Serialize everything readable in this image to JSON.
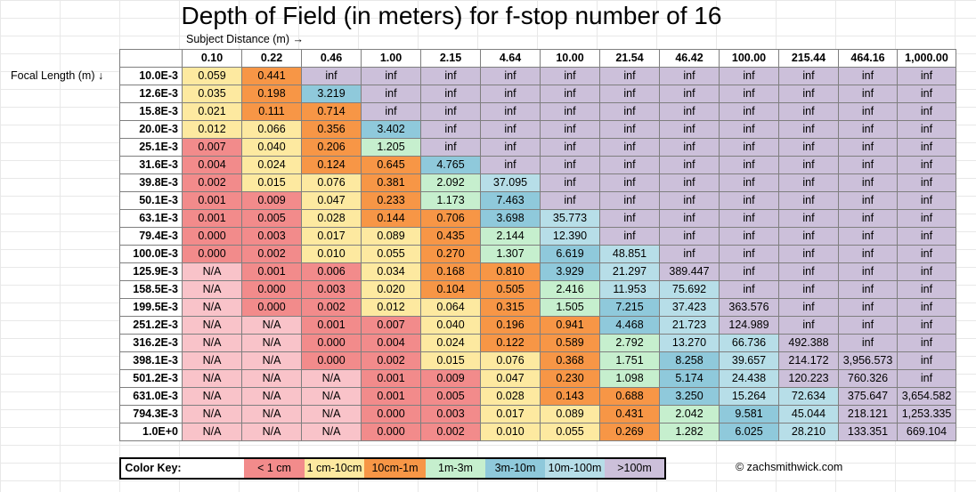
{
  "title": "Depth of Field (in meters) for f-stop number of 16",
  "subject_axis_label": "Subject Distance (m) →",
  "focal_axis_label": "Focal Length (m) ↓",
  "copyright": "© zachsmithwick.com",
  "color_key": {
    "label": "Color Key:",
    "items": [
      {
        "label": "< 1 cm",
        "color": "#f28b8b"
      },
      {
        "label": "1 cm-10cm",
        "color": "#fde9a0"
      },
      {
        "label": "10cm-1m",
        "color": "#f79646"
      },
      {
        "label": "1m-3m",
        "color": "#c6efce"
      },
      {
        "label": "3m-10m",
        "color": "#8fc9db"
      },
      {
        "label": "10m-100m",
        "color": "#b7dee8"
      },
      {
        "label": ">100m",
        "color": "#ccc0da"
      }
    ]
  },
  "cell_colors": {
    "na": "#f9c3c9",
    "lt1cm": "#f28b8b",
    "cm1_10": "#fde9a0",
    "cm10_1m": "#f79646",
    "m1_3": "#c6efce",
    "m3_10": "#8fc9db",
    "m10_100": "#b7dee8",
    "gt100": "#ccc0da",
    "inf": "#ccc0da"
  },
  "chart_data": {
    "type": "table",
    "title": "Depth of Field (in meters) for f-stop number of 16",
    "xlabel": "Subject Distance (m)",
    "ylabel": "Focal Length (m)",
    "columns": [
      "0.10",
      "0.22",
      "0.46",
      "1.00",
      "2.15",
      "4.64",
      "10.00",
      "21.54",
      "46.42",
      "100.00",
      "215.44",
      "464.16",
      "1,000.00"
    ],
    "rows": [
      {
        "label": "10.0E-3",
        "values": [
          "0.059",
          "0.441",
          "inf",
          "inf",
          "inf",
          "inf",
          "inf",
          "inf",
          "inf",
          "inf",
          "inf",
          "inf",
          "inf"
        ]
      },
      {
        "label": "12.6E-3",
        "values": [
          "0.035",
          "0.198",
          "3.219",
          "inf",
          "inf",
          "inf",
          "inf",
          "inf",
          "inf",
          "inf",
          "inf",
          "inf",
          "inf"
        ]
      },
      {
        "label": "15.8E-3",
        "values": [
          "0.021",
          "0.111",
          "0.714",
          "inf",
          "inf",
          "inf",
          "inf",
          "inf",
          "inf",
          "inf",
          "inf",
          "inf",
          "inf"
        ]
      },
      {
        "label": "20.0E-3",
        "values": [
          "0.012",
          "0.066",
          "0.356",
          "3.402",
          "inf",
          "inf",
          "inf",
          "inf",
          "inf",
          "inf",
          "inf",
          "inf",
          "inf"
        ]
      },
      {
        "label": "25.1E-3",
        "values": [
          "0.007",
          "0.040",
          "0.206",
          "1.205",
          "inf",
          "inf",
          "inf",
          "inf",
          "inf",
          "inf",
          "inf",
          "inf",
          "inf"
        ]
      },
      {
        "label": "31.6E-3",
        "values": [
          "0.004",
          "0.024",
          "0.124",
          "0.645",
          "4.765",
          "inf",
          "inf",
          "inf",
          "inf",
          "inf",
          "inf",
          "inf",
          "inf"
        ]
      },
      {
        "label": "39.8E-3",
        "values": [
          "0.002",
          "0.015",
          "0.076",
          "0.381",
          "2.092",
          "37.095",
          "inf",
          "inf",
          "inf",
          "inf",
          "inf",
          "inf",
          "inf"
        ]
      },
      {
        "label": "50.1E-3",
        "values": [
          "0.001",
          "0.009",
          "0.047",
          "0.233",
          "1.173",
          "7.463",
          "inf",
          "inf",
          "inf",
          "inf",
          "inf",
          "inf",
          "inf"
        ]
      },
      {
        "label": "63.1E-3",
        "values": [
          "0.001",
          "0.005",
          "0.028",
          "0.144",
          "0.706",
          "3.698",
          "35.773",
          "inf",
          "inf",
          "inf",
          "inf",
          "inf",
          "inf"
        ]
      },
      {
        "label": "79.4E-3",
        "values": [
          "0.000",
          "0.003",
          "0.017",
          "0.089",
          "0.435",
          "2.144",
          "12.390",
          "inf",
          "inf",
          "inf",
          "inf",
          "inf",
          "inf"
        ]
      },
      {
        "label": "100.0E-3",
        "values": [
          "0.000",
          "0.002",
          "0.010",
          "0.055",
          "0.270",
          "1.307",
          "6.619",
          "48.851",
          "inf",
          "inf",
          "inf",
          "inf",
          "inf"
        ]
      },
      {
        "label": "125.9E-3",
        "values": [
          "N/A",
          "0.001",
          "0.006",
          "0.034",
          "0.168",
          "0.810",
          "3.929",
          "21.297",
          "389.447",
          "inf",
          "inf",
          "inf",
          "inf"
        ]
      },
      {
        "label": "158.5E-3",
        "values": [
          "N/A",
          "0.000",
          "0.003",
          "0.020",
          "0.104",
          "0.505",
          "2.416",
          "11.953",
          "75.692",
          "inf",
          "inf",
          "inf",
          "inf"
        ]
      },
      {
        "label": "199.5E-3",
        "values": [
          "N/A",
          "0.000",
          "0.002",
          "0.012",
          "0.064",
          "0.315",
          "1.505",
          "7.215",
          "37.423",
          "363.576",
          "inf",
          "inf",
          "inf"
        ]
      },
      {
        "label": "251.2E-3",
        "values": [
          "N/A",
          "N/A",
          "0.001",
          "0.007",
          "0.040",
          "0.196",
          "0.941",
          "4.468",
          "21.723",
          "124.989",
          "inf",
          "inf",
          "inf"
        ]
      },
      {
        "label": "316.2E-3",
        "values": [
          "N/A",
          "N/A",
          "0.000",
          "0.004",
          "0.024",
          "0.122",
          "0.589",
          "2.792",
          "13.270",
          "66.736",
          "492.388",
          "inf",
          "inf"
        ]
      },
      {
        "label": "398.1E-3",
        "values": [
          "N/A",
          "N/A",
          "0.000",
          "0.002",
          "0.015",
          "0.076",
          "0.368",
          "1.751",
          "8.258",
          "39.657",
          "214.172",
          "3,956.573",
          "inf"
        ]
      },
      {
        "label": "501.2E-3",
        "values": [
          "N/A",
          "N/A",
          "N/A",
          "0.001",
          "0.009",
          "0.047",
          "0.230",
          "1.098",
          "5.174",
          "24.438",
          "120.223",
          "760.326",
          "inf"
        ]
      },
      {
        "label": "631.0E-3",
        "values": [
          "N/A",
          "N/A",
          "N/A",
          "0.001",
          "0.005",
          "0.028",
          "0.143",
          "0.688",
          "3.250",
          "15.264",
          "72.634",
          "375.647",
          "3,654.582"
        ]
      },
      {
        "label": "794.3E-3",
        "values": [
          "N/A",
          "N/A",
          "N/A",
          "0.000",
          "0.003",
          "0.017",
          "0.089",
          "0.431",
          "2.042",
          "9.581",
          "45.044",
          "218.121",
          "1,253.335"
        ]
      },
      {
        "label": "1.0E+0",
        "values": [
          "N/A",
          "N/A",
          "N/A",
          "0.000",
          "0.002",
          "0.010",
          "0.055",
          "0.269",
          "1.282",
          "6.025",
          "28.210",
          "133.351",
          "669.104"
        ]
      }
    ]
  }
}
